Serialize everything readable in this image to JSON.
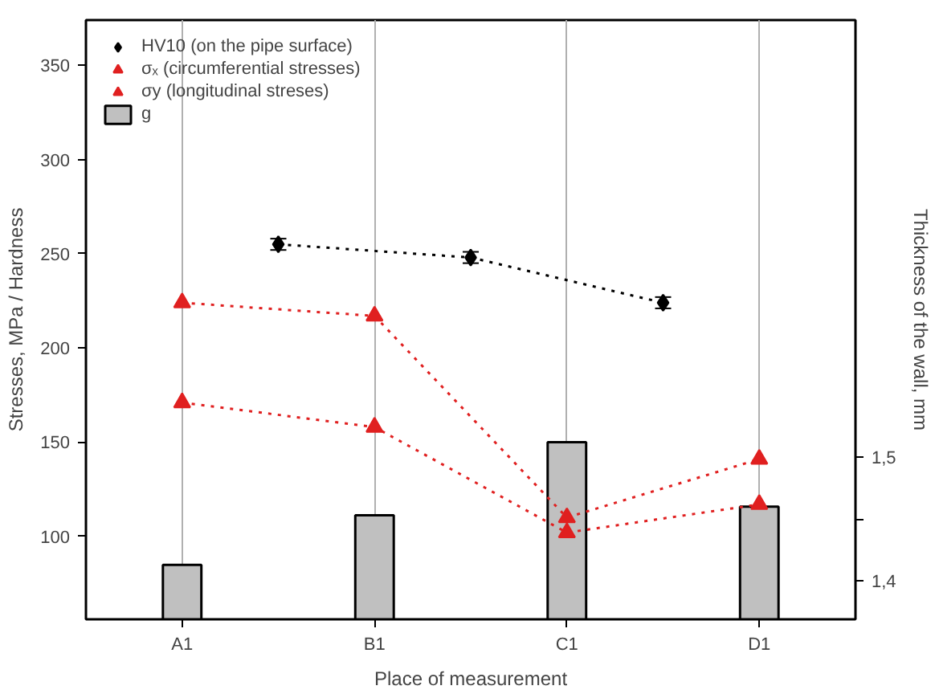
{
  "chart_data": {
    "type": "line",
    "xlabel": "Place of measurement",
    "ylabel": "Stresses, MPa / Hardness",
    "y2label": "Thickness of the wall, mm",
    "categories": [
      "A1",
      null,
      "B1",
      null,
      "C1",
      null,
      "D1"
    ],
    "ylim": [
      56,
      374
    ],
    "yticks": [
      100,
      150,
      200,
      250,
      300,
      350
    ],
    "y2lim": [
      1.369,
      1.853
    ],
    "y2ticks": [
      {
        "value": 1.4,
        "label": "1,4"
      },
      {
        "value": 1.45,
        "label": null
      },
      {
        "value": 1.5,
        "label": "1,5"
      }
    ],
    "grid": "x",
    "legend": "top left",
    "line_style": "dotted",
    "series": [
      {
        "name": "HV10 (on the pipe surface)",
        "color": "#000000",
        "values": [
          null,
          255,
          null,
          248,
          null,
          224,
          null
        ],
        "errors": [
          null,
          3,
          null,
          3,
          null,
          3,
          null
        ],
        "marker": "diamond"
      },
      {
        "name": "σₓ (circumferential stresses)",
        "color": "#e02020",
        "values": [
          224,
          null,
          217,
          null,
          110,
          null,
          141
        ],
        "marker": "triangle"
      },
      {
        "name": "σy (longitudinal streses)",
        "color": "#e02020",
        "values": [
          171,
          null,
          158,
          null,
          102,
          null,
          117
        ],
        "marker": "triangle"
      },
      {
        "name": "g",
        "type": "bar",
        "axis": "y2",
        "color": "#c0c0c0",
        "values": [
          1.413,
          null,
          1.453,
          null,
          1.512,
          null,
          1.46
        ]
      }
    ]
  }
}
